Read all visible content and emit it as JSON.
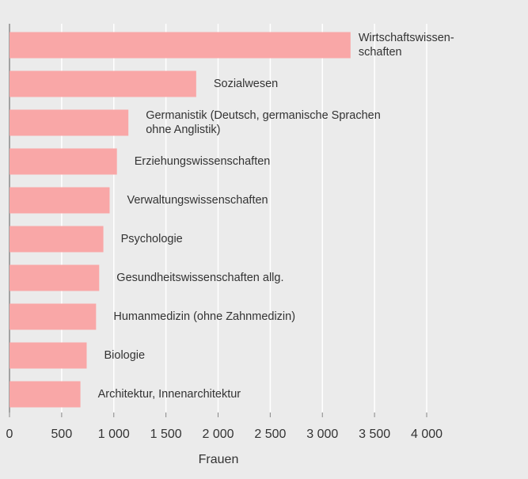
{
  "chart_data": {
    "type": "bar",
    "orientation": "horizontal",
    "categories": [
      "Wirtschaftswissen-\nschaften",
      "Sozialwesen",
      "Germanistik (Deutsch, germanische Sprachen\nohne Anglistik)",
      "Erziehungswissenschaften",
      "Verwaltungswissenschaften",
      "Psychologie",
      "Gesundheitswissenschaften allg.",
      "Humanmedizin (ohne Zahnmedizin)",
      "Biologie",
      "Architektur, Innenarchitektur"
    ],
    "values": [
      3270,
      1790,
      1140,
      1030,
      960,
      900,
      860,
      830,
      740,
      680
    ],
    "color": "#f9a7a7",
    "xlabel": "Frauen",
    "xlim": [
      0,
      4000
    ],
    "xticks": [
      0,
      500,
      {
        "value": 1000,
        "label": "1 000"
      },
      {
        "value": 1500,
        "label": "1 500"
      },
      {
        "value": 2000,
        "label": "2 000"
      },
      {
        "value": 2500,
        "label": "2 500"
      },
      {
        "value": 3000,
        "label": "3 000"
      },
      {
        "value": 3500,
        "label": "3 500"
      },
      {
        "value": 4000,
        "label": "4 000"
      }
    ],
    "grid": true
  }
}
